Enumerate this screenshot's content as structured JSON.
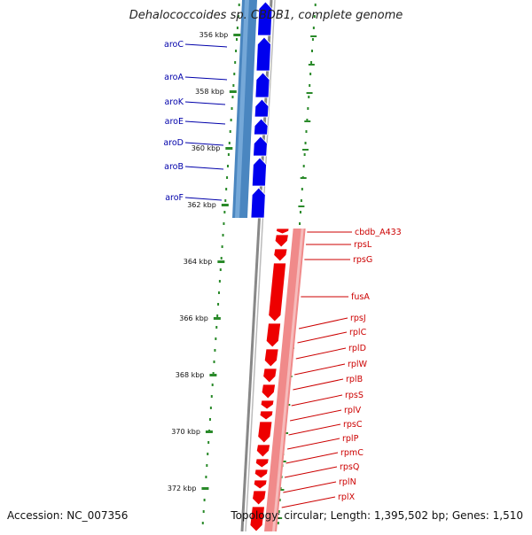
{
  "title": "Dehalococcoides sp. CBDB1, complete genome",
  "accession": "Accession: NC_007356",
  "summary": "Topology: circular; Length: 1,395,502 bp; Genes: 1,510",
  "colors": {
    "forward_gene": "#0000ee",
    "forward_band": "#4a86c0",
    "reverse_gene": "#ee0000",
    "reverse_band": "#f08a8a",
    "backbone": "#888888",
    "tick": "#2a8a2a",
    "forward_label": "#0000aa",
    "reverse_label": "#cc0000"
  },
  "ruler": [
    "356 kbp",
    "358 kbp",
    "360 kbp",
    "362 kbp",
    "364 kbp",
    "366 kbp",
    "368 kbp",
    "370 kbp",
    "372 kbp"
  ],
  "forward_genes": [
    "aroC",
    "aroA",
    "aroK",
    "aroE",
    "aroD",
    "aroB",
    "aroF"
  ],
  "reverse_genes": [
    "cbdb_A433",
    "rpsL",
    "rpsG",
    "fusA",
    "rpsJ",
    "rplC",
    "rplD",
    "rplW",
    "rplB",
    "rpsS",
    "rplV",
    "rpsC",
    "rplP",
    "rpmC",
    "rpsQ",
    "rplN",
    "rplX"
  ]
}
